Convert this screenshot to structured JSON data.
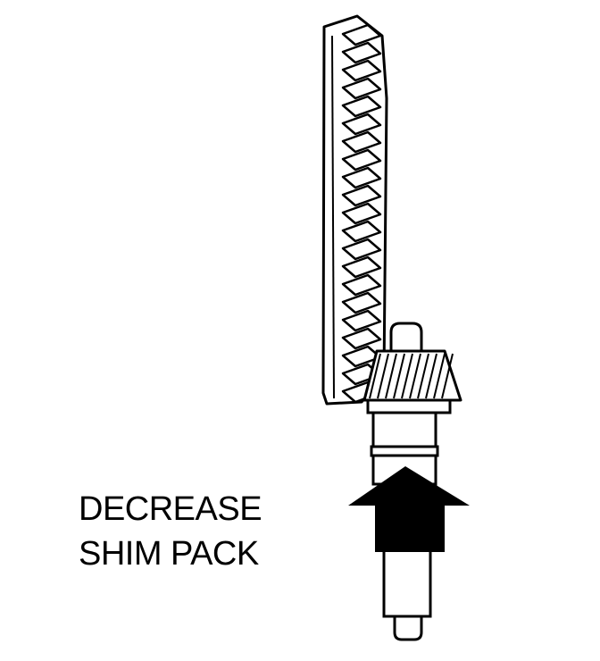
{
  "label": {
    "line1": "DECREASE",
    "line2": "SHIM PACK"
  },
  "arrow": {
    "direction": "up"
  },
  "colors": {
    "ink": "#000000",
    "paper": "#ffffff"
  }
}
